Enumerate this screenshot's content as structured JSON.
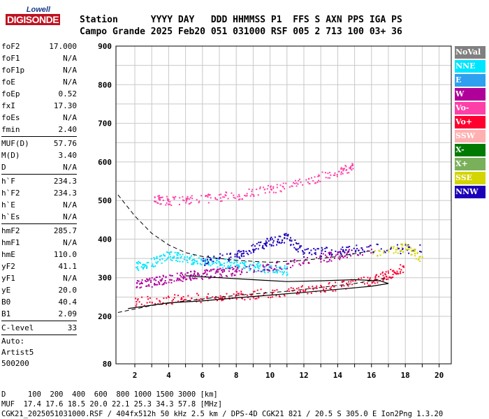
{
  "logo": {
    "top": "Lowell",
    "main": "DIGISONDE"
  },
  "header": {
    "line1": "Station      YYYY DAY   DDD HHMMSS P1  FFS S AXN PPS IGA PS",
    "line2": "Campo Grande 2025 Feb20 051 031000 RSF 005 2 713 100 03+ 36"
  },
  "params": [
    {
      "label": "foF2",
      "value": "17.000"
    },
    {
      "label": "foF1",
      "value": "N/A"
    },
    {
      "label": "foF1p",
      "value": "N/A"
    },
    {
      "label": "foE",
      "value": "N/A"
    },
    {
      "label": "foEp",
      "value": "0.52"
    },
    {
      "label": "fxI",
      "value": "17.30"
    },
    {
      "label": "foEs",
      "value": "N/A"
    },
    {
      "label": "fmin",
      "value": "2.40"
    },
    {
      "sep": true
    },
    {
      "label": "MUF(D)",
      "value": "57.76"
    },
    {
      "label": "M(D)",
      "value": "3.40"
    },
    {
      "label": "D",
      "value": "N/A"
    },
    {
      "sep": true
    },
    {
      "label": "h`F",
      "value": "234.3"
    },
    {
      "label": "h`F2",
      "value": "234.3"
    },
    {
      "label": "h`E",
      "value": "N/A"
    },
    {
      "label": "h`Es",
      "value": "N/A"
    },
    {
      "sep": true
    },
    {
      "label": "hmF2",
      "value": "285.7"
    },
    {
      "label": "hmF1",
      "value": "N/A"
    },
    {
      "label": "hmE",
      "value": "110.0"
    },
    {
      "label": "yF2",
      "value": "41.1"
    },
    {
      "label": "yF1",
      "value": "N/A"
    },
    {
      "label": "yE",
      "value": "20.0"
    },
    {
      "label": "B0",
      "value": "40.4"
    },
    {
      "label": "B1",
      "value": "2.09"
    },
    {
      "sep": true
    },
    {
      "label": "C-level",
      "value": "33"
    },
    {
      "sep": true
    },
    {
      "text": "Auto:"
    },
    {
      "text": "Artist5"
    },
    {
      "text": "500200"
    }
  ],
  "legend": [
    {
      "label": "NoVal",
      "color": "#808080"
    },
    {
      "label": "NNE",
      "color": "#00e5ff"
    },
    {
      "label": "E",
      "color": "#2f9ff0"
    },
    {
      "label": "W",
      "color": "#b0009a"
    },
    {
      "label": "Vo-",
      "color": "#ff3fa8"
    },
    {
      "label": "Vo+",
      "color": "#ff0030"
    },
    {
      "label": "SSW",
      "color": "#ffb0b0"
    },
    {
      "label": "X-",
      "color": "#007a00"
    },
    {
      "label": "X+",
      "color": "#7ab05a"
    },
    {
      "label": "SSE",
      "color": "#d4d400"
    },
    {
      "label": "NNW",
      "color": "#1c00b8"
    }
  ],
  "chart_data": {
    "type": "scatter",
    "xlabel": "",
    "ylabel": "",
    "xlim": [
      1,
      21
    ],
    "y_ticks": [
      900,
      800,
      700,
      600,
      500,
      400,
      300,
      200,
      80
    ],
    "x_ticks": [
      2,
      4,
      6,
      8,
      10,
      12,
      14,
      16,
      18,
      20
    ],
    "series": [
      {
        "name": "NNE",
        "points": [
          [
            2,
            330
          ],
          [
            3,
            340
          ],
          [
            4,
            360
          ],
          [
            5,
            350
          ],
          [
            6,
            345
          ],
          [
            7,
            340
          ],
          [
            8,
            335
          ],
          [
            9,
            330
          ],
          [
            10,
            325
          ],
          [
            11,
            320
          ]
        ]
      },
      {
        "name": "W",
        "points": [
          [
            2,
            285
          ],
          [
            3,
            290
          ],
          [
            4,
            300
          ],
          [
            5,
            305
          ],
          [
            6,
            310
          ],
          [
            7,
            315
          ],
          [
            8,
            320
          ],
          [
            10,
            330
          ],
          [
            12,
            345
          ],
          [
            14,
            360
          ],
          [
            16,
            375
          ]
        ]
      },
      {
        "name": "Vo+",
        "points": [
          [
            2,
            240
          ],
          [
            4,
            245
          ],
          [
            6,
            250
          ],
          [
            8,
            255
          ],
          [
            10,
            262
          ],
          [
            12,
            270
          ],
          [
            14,
            280
          ],
          [
            16,
            295
          ],
          [
            17,
            310
          ],
          [
            18,
            330
          ]
        ]
      },
      {
        "name": "NNW",
        "points": [
          [
            6,
            345
          ],
          [
            8,
            360
          ],
          [
            9,
            380
          ],
          [
            10,
            395
          ],
          [
            11,
            405
          ],
          [
            12,
            365
          ],
          [
            14,
            370
          ],
          [
            16,
            378
          ],
          [
            19,
            375
          ]
        ]
      },
      {
        "name": "Vo-",
        "points": [
          [
            3,
            505
          ],
          [
            4,
            500
          ],
          [
            6,
            505
          ],
          [
            8,
            515
          ],
          [
            10,
            530
          ],
          [
            12,
            550
          ],
          [
            14,
            575
          ],
          [
            15,
            590
          ]
        ]
      },
      {
        "name": "SSE",
        "points": [
          [
            16,
            360
          ],
          [
            18,
            380
          ],
          [
            19,
            350
          ]
        ]
      }
    ],
    "profile_solid": [
      [
        1.6,
        220
      ],
      [
        4,
        235
      ],
      [
        6,
        240
      ],
      [
        8,
        248
      ],
      [
        10,
        255
      ],
      [
        12,
        262
      ],
      [
        14,
        270
      ],
      [
        16,
        278
      ],
      [
        17,
        285
      ],
      [
        16.5,
        292
      ],
      [
        15,
        295
      ],
      [
        13,
        292
      ],
      [
        11,
        290
      ],
      [
        9,
        295
      ],
      [
        7,
        300
      ],
      [
        5,
        305
      ]
    ],
    "profile_dashed_low": [
      [
        1,
        210
      ],
      [
        3,
        228
      ],
      [
        5,
        240
      ],
      [
        7,
        250
      ],
      [
        9,
        258
      ],
      [
        11,
        265
      ],
      [
        13,
        275
      ],
      [
        15,
        285
      ],
      [
        17,
        300
      ]
    ],
    "profile_dashed_high": [
      [
        1,
        515
      ],
      [
        2,
        460
      ],
      [
        3,
        415
      ],
      [
        4,
        385
      ],
      [
        5,
        365
      ],
      [
        6,
        355
      ],
      [
        8,
        345
      ],
      [
        10,
        340
      ],
      [
        12,
        345
      ],
      [
        14,
        355
      ],
      [
        16,
        370
      ]
    ]
  },
  "footer": {
    "line1": "D     100  200  400  600  800 1000 1500 3000 [km]",
    "line2": "MUF  17.4 17.6 18.5 20.0 22.1 25.3 34.3 57.8 [MHz]",
    "line3": "CGK21_2025051031000.RSF / 404fx512h 50 kHz 2.5 km / DPS-4D CGK21 821 / 20.5 S 305.0 E Ion2Png 1.3.20"
  }
}
